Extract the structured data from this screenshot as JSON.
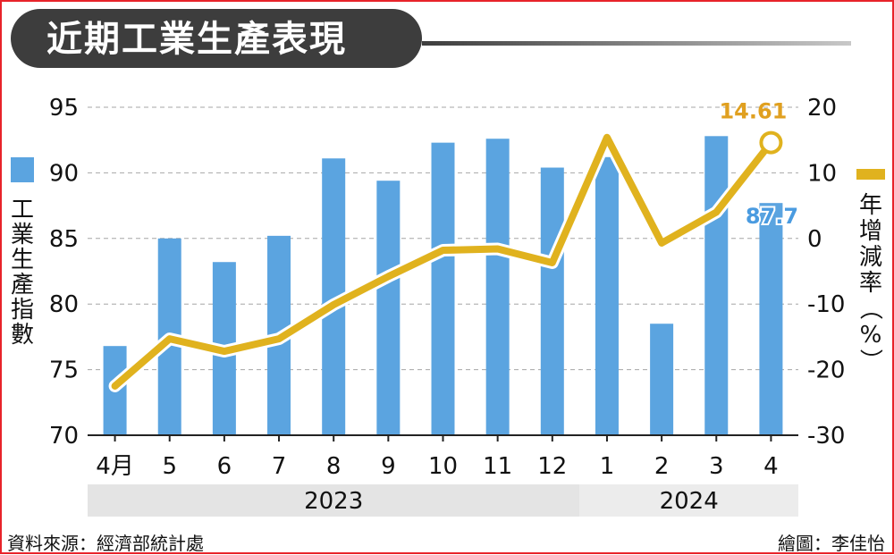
{
  "title": "近期工業生產表現",
  "source": "資料來源：經濟部統計處",
  "credit": "繪圖：李佳怡",
  "chart_data": {
    "type": "bar+line",
    "categories": [
      "4月",
      "5",
      "6",
      "7",
      "8",
      "9",
      "10",
      "11",
      "12",
      "1",
      "2",
      "3",
      "4"
    ],
    "year_groups": [
      {
        "label": "2023",
        "from": 0,
        "to": 8
      },
      {
        "label": "2024",
        "from": 9,
        "to": 12
      }
    ],
    "series": [
      {
        "name": "工業生產指數",
        "type": "bar",
        "axis": "left",
        "color": "#5ba4e0",
        "values": [
          76.8,
          85.0,
          83.2,
          85.2,
          91.1,
          89.4,
          92.3,
          92.6,
          90.4,
          91.2,
          78.5,
          92.8,
          87.7
        ]
      },
      {
        "name": "年增減率（%）",
        "type": "line",
        "axis": "right",
        "color": "#e0b21e",
        "values": [
          -22.5,
          -15.3,
          -17.2,
          -15.3,
          -10.1,
          -5.8,
          -1.8,
          -1.6,
          -3.7,
          15.4,
          -0.7,
          4.0,
          14.61
        ]
      }
    ],
    "left_axis": {
      "label": "工業生產指數",
      "ylim": [
        70,
        95
      ],
      "ticks": [
        70,
        75,
        80,
        85,
        90,
        95
      ]
    },
    "right_axis": {
      "label": "年增減率（%）",
      "ylim": [
        -30,
        20
      ],
      "ticks": [
        -30,
        -20,
        -10,
        0,
        10,
        20
      ]
    },
    "annotations": [
      {
        "series": 1,
        "index": 12,
        "text": "14.61",
        "color": "#e0a020"
      },
      {
        "series": 0,
        "index": 12,
        "text": "87.7",
        "color": "#4a9be0"
      }
    ],
    "grid": "dashed-horizontal",
    "legend_placement": "sides"
  }
}
